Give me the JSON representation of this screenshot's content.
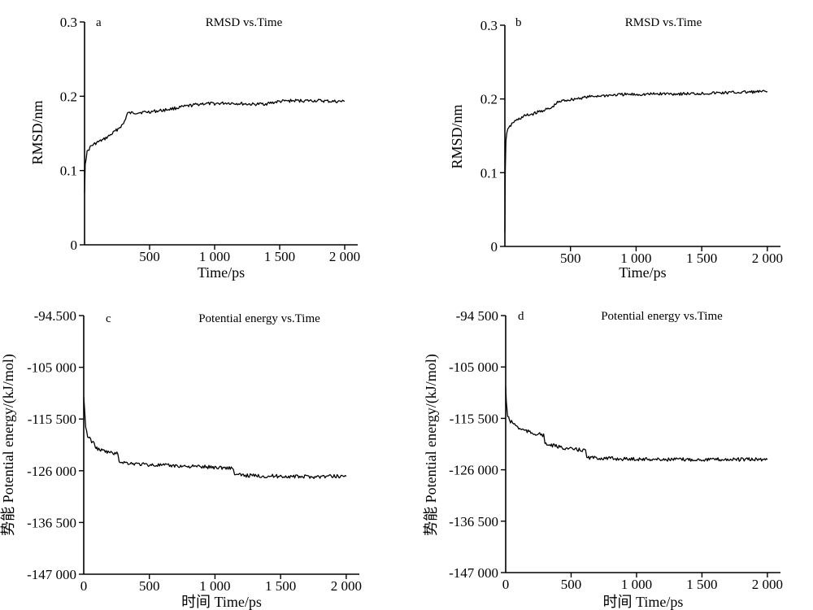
{
  "chart_data": [
    {
      "id": "a",
      "type": "line",
      "letter": "a",
      "title": "RMSD vs.Time",
      "xlabel": "Time/ps",
      "ylabel": "RMSD/nm",
      "xlim": [
        0,
        2100
      ],
      "ylim": [
        0,
        0.3
      ],
      "xticks": [
        500,
        1000,
        1500,
        2000
      ],
      "xtick_labels": [
        "500",
        "1 000",
        "1 500",
        "2 000"
      ],
      "yticks": [
        0,
        0.1,
        0.2,
        0.3
      ],
      "ytick_labels": [
        "0",
        "0.1",
        "0.2",
        "0.3"
      ],
      "x": [
        0,
        5,
        20,
        50,
        100,
        150,
        200,
        250,
        300,
        330,
        400,
        500,
        600,
        700,
        800,
        900,
        1000,
        1100,
        1200,
        1300,
        1400,
        1500,
        1600,
        1700,
        1800,
        1900,
        2000
      ],
      "y": [
        0.07,
        0.11,
        0.125,
        0.133,
        0.138,
        0.142,
        0.148,
        0.155,
        0.163,
        0.177,
        0.178,
        0.179,
        0.181,
        0.184,
        0.187,
        0.19,
        0.19,
        0.191,
        0.19,
        0.189,
        0.19,
        0.193,
        0.194,
        0.194,
        0.194,
        0.193,
        0.193
      ]
    },
    {
      "id": "b",
      "type": "line",
      "letter": "b",
      "title": "RMSD vs.Time",
      "xlabel": "Time/ps",
      "ylabel": "RMSD/nm",
      "xlim": [
        0,
        2100
      ],
      "ylim": [
        0,
        0.3
      ],
      "xticks": [
        500,
        1000,
        1500,
        2000
      ],
      "xtick_labels": [
        "500",
        "1 000",
        "1 500",
        "2 000"
      ],
      "yticks": [
        0,
        0.1,
        0.2,
        0.3
      ],
      "ytick_labels": [
        "0",
        "0.1",
        "0.2",
        "0.3"
      ],
      "x": [
        0,
        3,
        8,
        15,
        30,
        60,
        100,
        150,
        200,
        250,
        300,
        350,
        400,
        450,
        500,
        600,
        700,
        800,
        900,
        1000,
        1200,
        1400,
        1600,
        1800,
        2000
      ],
      "y": [
        0.02,
        0.1,
        0.145,
        0.155,
        0.16,
        0.168,
        0.172,
        0.177,
        0.179,
        0.182,
        0.185,
        0.187,
        0.195,
        0.198,
        0.199,
        0.202,
        0.204,
        0.205,
        0.206,
        0.206,
        0.207,
        0.207,
        0.208,
        0.209,
        0.21
      ]
    },
    {
      "id": "c",
      "type": "line",
      "letter": "c",
      "title": "Potential energy vs.Time",
      "xlabel": "时间 Time/ps",
      "ylabel": "势能  Potential energy/(kJ/mol)",
      "xlim": [
        0,
        2100
      ],
      "ylim": [
        -147000,
        -94500
      ],
      "xticks": [
        0,
        500,
        1000,
        1500,
        2000
      ],
      "xtick_labels": [
        "0",
        "500",
        "1 000",
        "1 500",
        "2 000"
      ],
      "yticks": [
        -94500,
        -105000,
        -115500,
        -126000,
        -136500,
        -147000
      ],
      "ytick_labels": [
        "-94.500",
        "-105 000",
        "-115 500",
        "-126 000",
        "-136 500",
        "-147 000"
      ],
      "x": [
        0,
        5,
        15,
        30,
        60,
        80,
        100,
        150,
        200,
        260,
        270,
        300,
        400,
        500,
        600,
        700,
        800,
        900,
        1000,
        1100,
        1140,
        1150,
        1200,
        1300,
        1400,
        1500,
        1600,
        1700,
        1800,
        1900,
        2000
      ],
      "y": [
        -111000,
        -113000,
        -117000,
        -119000,
        -120000,
        -120500,
        -121500,
        -122000,
        -122300,
        -122600,
        -124000,
        -124300,
        -124600,
        -124800,
        -124900,
        -125000,
        -125100,
        -125200,
        -125300,
        -125400,
        -125500,
        -126800,
        -126900,
        -127000,
        -127100,
        -127100,
        -127200,
        -127200,
        -127200,
        -127100,
        -127100
      ]
    },
    {
      "id": "d",
      "type": "line",
      "letter": "d",
      "title": "Potential energy vs.Time",
      "xlabel": "时间 Time/ps",
      "ylabel": "势能  Potential energy/(kJ/mol)",
      "xlim": [
        0,
        2100
      ],
      "ylim": [
        -147000,
        -94500
      ],
      "xticks": [
        0,
        500,
        1000,
        1500,
        2000
      ],
      "xtick_labels": [
        "0",
        "500",
        "1 000",
        "1 500",
        "2 000"
      ],
      "yticks": [
        -94500,
        -105000,
        -115500,
        -126000,
        -136500,
        -147000
      ],
      "ytick_labels": [
        "-94 500",
        "-105 000",
        "-115 500",
        "-126 000",
        "-136 500",
        "-147 000"
      ],
      "x": [
        0,
        5,
        15,
        30,
        60,
        100,
        150,
        200,
        290,
        300,
        350,
        400,
        500,
        600,
        610,
        620,
        700,
        800,
        900,
        1000,
        1200,
        1400,
        1600,
        1800,
        2000
      ],
      "y": [
        -109000,
        -112000,
        -115000,
        -116000,
        -116500,
        -117500,
        -118000,
        -118500,
        -118900,
        -120800,
        -121000,
        -121300,
        -121800,
        -122000,
        -122200,
        -123500,
        -123600,
        -123700,
        -123800,
        -123800,
        -123900,
        -123900,
        -123900,
        -123900,
        -123900
      ]
    }
  ]
}
